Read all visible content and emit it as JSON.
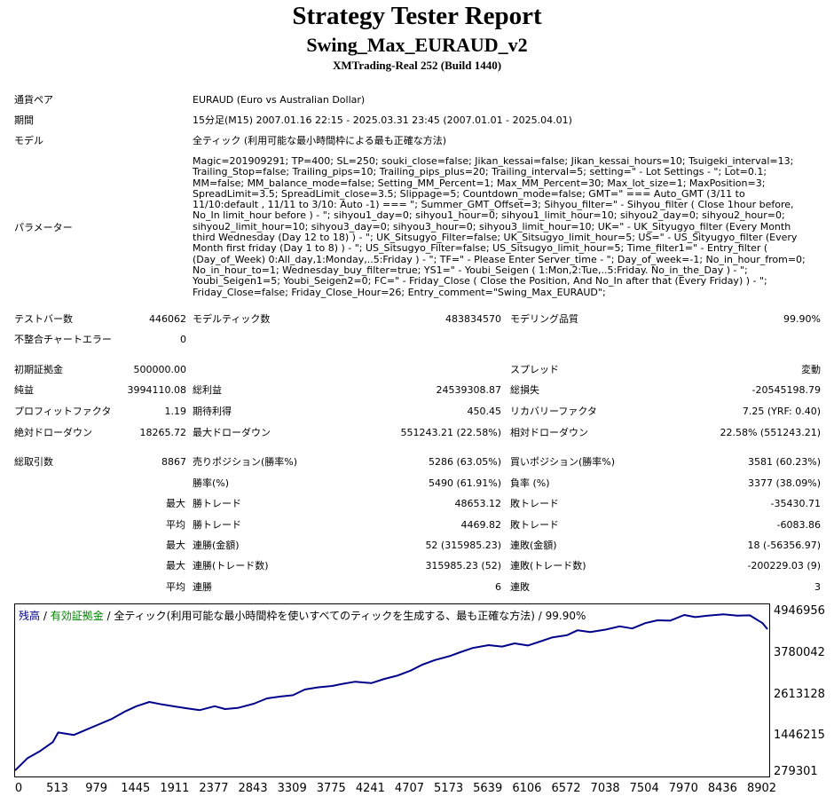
{
  "header": {
    "title": "Strategy Tester Report",
    "ea_name": "Swing_Max_EURAUD_v2",
    "server": "XMTrading-Real 252 (Build 1440)"
  },
  "info": {
    "symbol_label": "通貨ペア",
    "symbol_value": "EURAUD (Euro vs Australian Dollar)",
    "period_label": "期間",
    "period_value": "15分足(M15) 2007.01.16 22:15 - 2025.03.31 23:45 (2007.01.01 - 2025.04.01)",
    "model_label": "モデル",
    "model_value": "全ティック (利用可能な最小時間枠による最も正確な方法)",
    "params_label": "パラメーター",
    "params_value": "Magic=201909291; TP=400; SL=250; souki_close=false; Jikan_kessai=false; Jikan_kessai_hours=10; Tsuigeki_interval=13; Trailing_Stop=false; Trailing_pips=10; Trailing_pips_plus=20; Trailing_interval=5; setting=\" - Lot Settings - \"; Lot=0.1; MM=false; MM_balance_mode=false; Setting_MM_Percent=1; Max_MM_Percent=30; Max_lot_size=1; MaxPosition=3; SpreadLimit=3.5; SpreadLimit_close=3.5; Slippage=5; Countdown_mode=false; GMT=\" === Auto_GMT (3/11 to 11/10:default , 11/11 to 3/10: Auto -1) === \"; Summer_GMT_Offset=3; Sihyou_filter=\" - Sihyou_filter ( Close 1hour before, No_In limit_hour before ) - \"; sihyou1_day=0; sihyou1_hour=0; sihyou1_limit_hour=10; sihyou2_day=0; sihyou2_hour=0; sihyou2_limit_hour=10; sihyou3_day=0; sihyou3_hour=0; sihyou3_limit_hour=10; UK=\" - UK_Sityugyo_filter (Every Month third Wednesday (Day 12 to 18) ) - \"; UK_Sitsugyo_Filter=false; UK_Sitsugyo_limit_hour=5; US=\" - US_Sityugyo_filter (Every Month first friday (Day 1 to 8) ) - \"; US_Sitsugyo_Filter=false; US_Sitsugyo_limit_hour=5; Time_filter1=\" - Entry_filter ( (Day_of_Week) 0:All_day,1:Monday,..5:Friday ) - \"; TF=\" - Please Enter Server_time - \"; Day_of_week=-1; No_in_hour_from=0; No_in_hour_to=1; Wednesday_buy_filter=true; YS1=\" - Youbi_Seigen ( 1:Mon,2:Tue,..5:Friday. No_in_the_Day ) - \"; Youbi_Seigen1=5; Youbi_Seigen2=0; FC=\" - Friday_Close ( Close the Position, And No_In after that (Every Friday) ) - \"; Friday_Close=false; Friday_Close_Hour=26; Entry_comment=\"Swing_Max_EURAUD\";"
  },
  "stats": {
    "bars_label": "テストバー数",
    "bars_value": "446062",
    "ticks_label": "モデルティック数",
    "ticks_value": "483834570",
    "quality_label": "モデリング品質",
    "quality_value": "99.90%",
    "mismatch_label": "不整合チャートエラー",
    "mismatch_value": "0",
    "deposit_label": "初期証拠金",
    "deposit_value": "500000.00",
    "spread_label": "スプレッド",
    "spread_value": "変動",
    "net_label": "純益",
    "net_value": "3994110.08",
    "gross_profit_label": "総利益",
    "gross_profit_value": "24539308.87",
    "gross_loss_label": "総損失",
    "gross_loss_value": "-20545198.79",
    "pf_label": "プロフィットファクタ",
    "pf_value": "1.19",
    "expected_label": "期待利得",
    "expected_value": "450.45",
    "recovery_label": "リカバリーファクタ",
    "recovery_value": "7.25 (YRF: 0.40)",
    "abs_dd_label": "絶対ドローダウン",
    "abs_dd_value": "18265.72",
    "max_dd_label": "最大ドローダウン",
    "max_dd_value": "551243.21 (22.58%)",
    "rel_dd_label": "相対ドローダウン",
    "rel_dd_value": "22.58% (551243.21)",
    "total_trades_label": "総取引数",
    "total_trades_value": "8867",
    "short_label": "売りポジション(勝率%)",
    "short_value": "5286 (63.05%)",
    "long_label": "買いポジション(勝率%)",
    "long_value": "3581 (60.23%)",
    "win_rate_label": "勝率(%)",
    "win_rate_value": "5490 (61.91%)",
    "loss_rate_label": "負率 (%)",
    "loss_rate_value": "3377 (38.09%)",
    "max_label": "最大",
    "avg_label": "平均",
    "max_win_label": "勝トレード",
    "max_win_value": "48653.12",
    "max_loss_label": "敗トレード",
    "max_loss_value": "-35430.71",
    "avg_win_label": "勝トレード",
    "avg_win_value": "4469.82",
    "avg_loss_label": "敗トレード",
    "avg_loss_value": "-6083.86",
    "cons_win_amt_label": "連勝(金額)",
    "cons_win_amt_value": "52 (315985.23)",
    "cons_loss_amt_label": "連敗(金額)",
    "cons_loss_amt_value": "18 (-56356.97)",
    "cons_win_cnt_label": "連勝(トレード数)",
    "cons_win_cnt_value": "315985.23 (52)",
    "cons_loss_cnt_label": "連敗(トレード数)",
    "cons_loss_cnt_value": "-200229.03 (9)",
    "avg_cons_win_label": "連勝",
    "avg_cons_win_value": "6",
    "avg_cons_loss_label": "連敗",
    "avg_cons_loss_value": "3"
  },
  "chart_legend": {
    "balance": "残高",
    "sep1": " / ",
    "equity": "有効証拠金",
    "sep2": " / ",
    "model": "全ティック(利用可能な最小時間枠を使いすべてのティックを生成する、最も正確な方法) / 99.90%"
  },
  "colors": {
    "balance_line": "#00008b",
    "equity_label": "#008000"
  },
  "chart_data": {
    "type": "line",
    "title": "",
    "xlabel": "",
    "ylabel": "",
    "y_ticks": [
      "4946956",
      "3780042",
      "2613128",
      "1446215",
      "279301"
    ],
    "y_tick_values": [
      4946956,
      3780042,
      2613128,
      1446215,
      279301
    ],
    "x_ticks": [
      "0",
      "513",
      "979",
      "1445",
      "1911",
      "2377",
      "2843",
      "3309",
      "3775",
      "4241",
      "4707",
      "5173",
      "5639",
      "6106",
      "6572",
      "7038",
      "7504",
      "7970",
      "8436",
      "8902"
    ],
    "x_tick_values": [
      0,
      513,
      979,
      1445,
      1911,
      2377,
      2843,
      3309,
      3775,
      4241,
      4707,
      5173,
      5639,
      6106,
      6572,
      7038,
      7504,
      7970,
      8436,
      8902
    ],
    "xlim": [
      0,
      8960
    ],
    "ylim": [
      279301,
      5180000
    ],
    "series": [
      {
        "color": "#00008b",
        "x": [
          0,
          150,
          300,
          450,
          513,
          700,
          850,
          979,
          1150,
          1300,
          1445,
          1600,
          1750,
          1911,
          2050,
          2200,
          2377,
          2500,
          2650,
          2843,
          3000,
          3150,
          3309,
          3450,
          3600,
          3775,
          3900,
          4050,
          4241,
          4400,
          4550,
          4707,
          4850,
          5000,
          5173,
          5300,
          5450,
          5639,
          5800,
          5950,
          6106,
          6250,
          6400,
          6572,
          6700,
          6850,
          7038,
          7200,
          7350,
          7504,
          7650,
          7800,
          7970,
          8100,
          8250,
          8436,
          8600,
          8750,
          8902,
          8960
        ],
        "y": [
          500000,
          850000,
          1050000,
          1300000,
          1570000,
          1500000,
          1650000,
          1780000,
          1950000,
          2150000,
          2310000,
          2430000,
          2360000,
          2300000,
          2250000,
          2200000,
          2310000,
          2230000,
          2260000,
          2380000,
          2530000,
          2580000,
          2620000,
          2780000,
          2840000,
          2880000,
          2940000,
          3000000,
          2960000,
          3080000,
          3170000,
          3310000,
          3480000,
          3610000,
          3720000,
          3830000,
          3950000,
          4030000,
          3990000,
          4080000,
          4020000,
          4130000,
          4250000,
          4310000,
          4450000,
          4400000,
          4470000,
          4560000,
          4500000,
          4650000,
          4730000,
          4720000,
          4880000,
          4820000,
          4860000,
          4900000,
          4860000,
          4870000,
          4650000,
          4480000
        ]
      }
    ]
  }
}
